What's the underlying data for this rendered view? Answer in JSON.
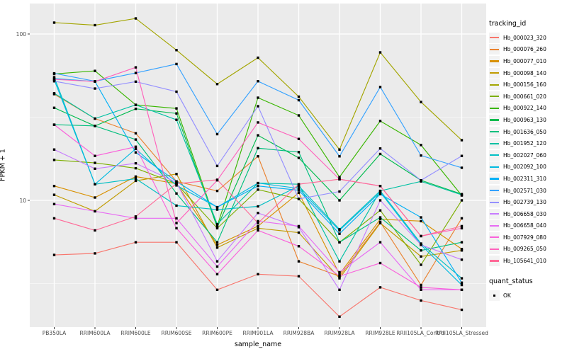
{
  "figure": {
    "background": "#FFFFFF",
    "panel_background": "#EBEBEB",
    "grid_color": "#FFFFFF",
    "tick_label_color": "#4D4D4D",
    "marker_color": "#000000"
  },
  "chart_data": {
    "type": "line",
    "title": "",
    "xlabel": "sample_name",
    "ylabel": "FPKM + 1",
    "y_scale": "log10",
    "y_ticks": [
      10,
      100
    ],
    "y_minor_ticks": [
      3.162,
      31.62
    ],
    "ylim": [
      1.8,
      140
    ],
    "grid": "on",
    "legend_position": "right",
    "categories": [
      "PB350LA",
      "RRIM600LA",
      "RRIM600LE",
      "RRIM600SE",
      "RRIM600PE",
      "RRIM901LA",
      "RRIM928BA",
      "RRIM928LA",
      "RRIM928LE",
      "RRII105LA_Control",
      "RRII105LA_Stressed"
    ],
    "series": [
      {
        "name": "Hb_000023_320",
        "color": "#F8766D",
        "values": [
          4.7,
          4.8,
          5.6,
          5.6,
          2.9,
          3.6,
          3.5,
          2.0,
          3.0,
          2.5,
          2.2
        ]
      },
      {
        "name": "Hb_000076_260",
        "color": "#EA8331",
        "values": [
          43.5,
          31.0,
          25.3,
          13.0,
          11.4,
          18.4,
          4.3,
          3.5,
          7.4,
          3.1,
          7.8
        ]
      },
      {
        "name": "Hb_000077_010",
        "color": "#D89000",
        "values": [
          12.2,
          10.4,
          13.9,
          12.6,
          5.4,
          7.0,
          11.1,
          3.6,
          7.7,
          7.5,
          5.1
        ]
      },
      {
        "name": "Hb_000098_140",
        "color": "#C09B00",
        "values": [
          10.8,
          8.6,
          13.1,
          14.4,
          5.2,
          6.8,
          6.4,
          3.4,
          7.3,
          4.6,
          5.0
        ]
      },
      {
        "name": "Hb_000156_160",
        "color": "#A3A500",
        "values": [
          117,
          113,
          124,
          80,
          50,
          72,
          42,
          20.2,
          77.5,
          39,
          23
        ]
      },
      {
        "name": "Hb_000661_020",
        "color": "#7CAE00",
        "values": [
          17.5,
          16.8,
          15.6,
          12.6,
          6.8,
          11.6,
          10.2,
          5.6,
          8.7,
          4.1,
          10.0
        ]
      },
      {
        "name": "Hb_000922_140",
        "color": "#39B600",
        "values": [
          57.5,
          60,
          37.5,
          35.7,
          7.0,
          41.4,
          32.4,
          13.8,
          30,
          21.5,
          10.7
        ]
      },
      {
        "name": "Hb_000963_130",
        "color": "#00BB4E",
        "values": [
          36,
          28,
          35.5,
          33.3,
          6.9,
          24.6,
          18,
          10,
          19,
          13.2,
          10.9
        ]
      },
      {
        "name": "Hb_001636_050",
        "color": "#00BF7D",
        "values": [
          28.5,
          28,
          23.2,
          11.0,
          5.6,
          20.6,
          19.5,
          5.6,
          7.9,
          5.0,
          5.6
        ]
      },
      {
        "name": "Hb_001952_120",
        "color": "#00C1A3",
        "values": [
          44,
          31,
          37.5,
          30.5,
          7.2,
          12.7,
          12.5,
          4.3,
          11.4,
          13.0,
          10.8
        ]
      },
      {
        "name": "Hb_002027_060",
        "color": "#00BFC4",
        "values": [
          55,
          12.5,
          13.5,
          9.3,
          8.8,
          9.2,
          12.2,
          6.7,
          11.4,
          5.5,
          3.4
        ]
      },
      {
        "name": "Hb_002092_100",
        "color": "#00BAE0",
        "values": [
          53,
          12.5,
          20.4,
          12.3,
          9.1,
          12.7,
          11.8,
          6.6,
          11.2,
          5.4,
          3.1
        ]
      },
      {
        "name": "Hb_002311_310",
        "color": "#00B0F6",
        "values": [
          54,
          51.8,
          19.4,
          13.0,
          9.1,
          12.2,
          11.5,
          6.3,
          10.9,
          7.9,
          3.2
        ]
      },
      {
        "name": "Hb_002571_030",
        "color": "#35A2FF",
        "values": [
          58,
          52,
          58.3,
          66,
          25,
          52,
          40,
          18.4,
          48,
          18.6,
          15.7
        ]
      },
      {
        "name": "Hb_002739_130",
        "color": "#9590FF",
        "values": [
          52,
          47,
          51.7,
          45,
          16.1,
          36.8,
          10.2,
          11.3,
          20.5,
          13.2,
          18.5
        ]
      },
      {
        "name": "Hb_006658_030",
        "color": "#C77CFF",
        "values": [
          20.2,
          15.5,
          16.7,
          12.8,
          4.3,
          8.4,
          6.9,
          2.9,
          10.0,
          5.4,
          4.4
        ]
      },
      {
        "name": "Hb_006658_040",
        "color": "#E76BF3",
        "values": [
          9.5,
          8.6,
          7.8,
          7.8,
          4.0,
          7.5,
          7.0,
          3.7,
          5.6,
          2.9,
          2.9
        ]
      },
      {
        "name": "Hb_007929_080",
        "color": "#FA62DB",
        "values": [
          28.5,
          18.5,
          21.0,
          6.8,
          3.6,
          6.6,
          5.3,
          3.5,
          4.2,
          3.0,
          2.9
        ]
      },
      {
        "name": "Hb_009265_050",
        "color": "#FF62BC",
        "values": [
          53.4,
          51.8,
          63,
          7.3,
          13.2,
          29.4,
          23.4,
          13.4,
          12.2,
          6.1,
          6.8
        ]
      },
      {
        "name": "Hb_105641_010",
        "color": "#FF6A98",
        "values": [
          7.8,
          6.6,
          8.0,
          12.6,
          13.3,
          7.3,
          12.5,
          13.4,
          12.2,
          6.1,
          7.0
        ]
      }
    ],
    "legend": {
      "tracking_title": "tracking_id",
      "quant_title": "quant_status",
      "quant_items": [
        {
          "label": "OK",
          "shape": "square",
          "color": "#000000"
        }
      ]
    },
    "marker": {
      "shape": "square",
      "color": "#000000"
    }
  }
}
